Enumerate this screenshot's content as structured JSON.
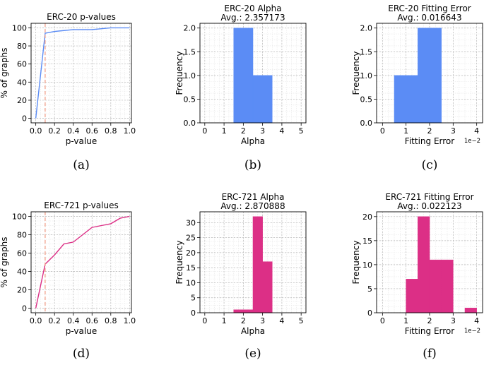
{
  "colors": {
    "erc20": "#5b8cf5",
    "erc721": "#dc2f86",
    "reference": "#f0a08a",
    "grid": "#b9b9b9",
    "gridMinor": "#e6e6e6"
  },
  "chart_data": [
    {
      "id": "a",
      "type": "line",
      "caption": "(a)",
      "title": "ERC-20 p-values",
      "subtitle": "",
      "xlabel": "p-value",
      "ylabel": "% of graphs",
      "xlim": [
        -0.05,
        1.02
      ],
      "ylim": [
        -5,
        105
      ],
      "xticks": [
        0.0,
        0.2,
        0.4,
        0.6,
        0.8,
        1.0
      ],
      "xtick_labels": [
        "0.0",
        "0.2",
        "0.4",
        "0.6",
        "0.8",
        "1.0"
      ],
      "yticks": [
        0,
        20,
        40,
        60,
        80,
        100
      ],
      "ytick_labels": [
        "0",
        "20",
        "40",
        "60",
        "80",
        "100"
      ],
      "x": [
        0.0,
        0.1,
        0.15,
        0.2,
        0.3,
        0.4,
        0.5,
        0.6,
        0.7,
        0.8,
        0.9,
        1.0
      ],
      "y": [
        0,
        94,
        95,
        96,
        97,
        98,
        98,
        98,
        99,
        100,
        100,
        100
      ],
      "reference_x": 0.1,
      "series_color": "erc20",
      "offset_text": "",
      "grid": true
    },
    {
      "id": "b",
      "type": "bar",
      "caption": "(b)",
      "title": "ERC-20 Alpha",
      "subtitle": "Avg.: 2.357173",
      "xlabel": "Alpha",
      "ylabel": "Frequency",
      "xlim": [
        -0.25,
        5.25
      ],
      "ylim": [
        0,
        2.1
      ],
      "xticks": [
        0,
        1,
        2,
        3,
        4,
        5
      ],
      "xtick_labels": [
        "0",
        "1",
        "2",
        "3",
        "4",
        "5"
      ],
      "yticks": [
        0.0,
        0.5,
        1.0,
        1.5,
        2.0
      ],
      "ytick_labels": [
        "0.0",
        "0.5",
        "1.0",
        "1.5",
        "2.0"
      ],
      "bins": [
        [
          1.5,
          2.5,
          2
        ],
        [
          2.5,
          3.5,
          1
        ]
      ],
      "series_color": "erc20",
      "offset_text": "",
      "grid": true
    },
    {
      "id": "c",
      "type": "bar",
      "caption": "(c)",
      "title": "ERC-20 Fitting Error",
      "subtitle": "Avg.: 0.016643",
      "xlabel": "Fitting Error",
      "ylabel": "Frequency",
      "xlim": [
        -0.25,
        4.25
      ],
      "ylim": [
        0,
        2.1
      ],
      "xticks": [
        0,
        1,
        2,
        3,
        4
      ],
      "xtick_labels": [
        "0",
        "1",
        "2",
        "3",
        "4"
      ],
      "yticks": [
        0.0,
        0.5,
        1.0,
        1.5,
        2.0
      ],
      "ytick_labels": [
        "0.0",
        "0.5",
        "1.0",
        "1.5",
        "2.0"
      ],
      "bins": [
        [
          0.5,
          1.5,
          1
        ],
        [
          1.5,
          2.5,
          2
        ]
      ],
      "series_color": "erc20",
      "offset_text": "1e−2",
      "grid": true
    },
    {
      "id": "d",
      "type": "line",
      "caption": "(d)",
      "title": "ERC-721 p-values",
      "subtitle": "",
      "xlabel": "p-value",
      "ylabel": "% of graphs",
      "xlim": [
        -0.05,
        1.02
      ],
      "ylim": [
        -5,
        105
      ],
      "xticks": [
        0.0,
        0.2,
        0.4,
        0.6,
        0.8,
        1.0
      ],
      "xtick_labels": [
        "0.0",
        "0.2",
        "0.4",
        "0.6",
        "0.8",
        "1.0"
      ],
      "yticks": [
        0,
        20,
        40,
        60,
        80,
        100
      ],
      "ytick_labels": [
        "0",
        "20",
        "40",
        "60",
        "80",
        "100"
      ],
      "x": [
        0.0,
        0.1,
        0.2,
        0.3,
        0.4,
        0.5,
        0.6,
        0.7,
        0.8,
        0.9,
        1.0
      ],
      "y": [
        0,
        48,
        58,
        70,
        72,
        80,
        88,
        90,
        92,
        98,
        100
      ],
      "reference_x": 0.1,
      "series_color": "erc721",
      "offset_text": "",
      "grid": true
    },
    {
      "id": "e",
      "type": "bar",
      "caption": "(e)",
      "title": "ERC-721 Alpha",
      "subtitle": "Avg.: 2.870888",
      "xlabel": "Alpha",
      "ylabel": "Frequency",
      "xlim": [
        -0.25,
        5.25
      ],
      "ylim": [
        0,
        33.6
      ],
      "xticks": [
        0,
        1,
        2,
        3,
        4,
        5
      ],
      "xtick_labels": [
        "0",
        "1",
        "2",
        "3",
        "4",
        "5"
      ],
      "yticks": [
        0,
        5,
        10,
        15,
        20,
        25,
        30
      ],
      "ytick_labels": [
        "0",
        "5",
        "10",
        "15",
        "20",
        "25",
        "30"
      ],
      "bins": [
        [
          1.5,
          2.0,
          1
        ],
        [
          2.0,
          2.5,
          1
        ],
        [
          2.5,
          3.0,
          32
        ],
        [
          3.0,
          3.5,
          17
        ]
      ],
      "series_color": "erc721",
      "offset_text": "",
      "grid": true
    },
    {
      "id": "f",
      "type": "bar",
      "caption": "(f)",
      "title": "ERC-721 Fitting Error",
      "subtitle": "Avg.: 0.022123",
      "xlabel": "Fitting Error",
      "ylabel": "Frequency",
      "xlim": [
        -0.25,
        4.25
      ],
      "ylim": [
        0,
        21
      ],
      "xticks": [
        0,
        1,
        2,
        3,
        4
      ],
      "xtick_labels": [
        "0",
        "1",
        "2",
        "3",
        "4"
      ],
      "yticks": [
        0,
        5,
        10,
        15,
        20
      ],
      "ytick_labels": [
        "0",
        "5",
        "10",
        "15",
        "20"
      ],
      "bins": [
        [
          1.0,
          1.5,
          7
        ],
        [
          1.5,
          2.0,
          20
        ],
        [
          2.0,
          2.5,
          11
        ],
        [
          2.5,
          3.0,
          11
        ],
        [
          3.5,
          4.0,
          1
        ]
      ],
      "series_color": "erc721",
      "offset_text": "1e−2",
      "grid": true
    }
  ]
}
